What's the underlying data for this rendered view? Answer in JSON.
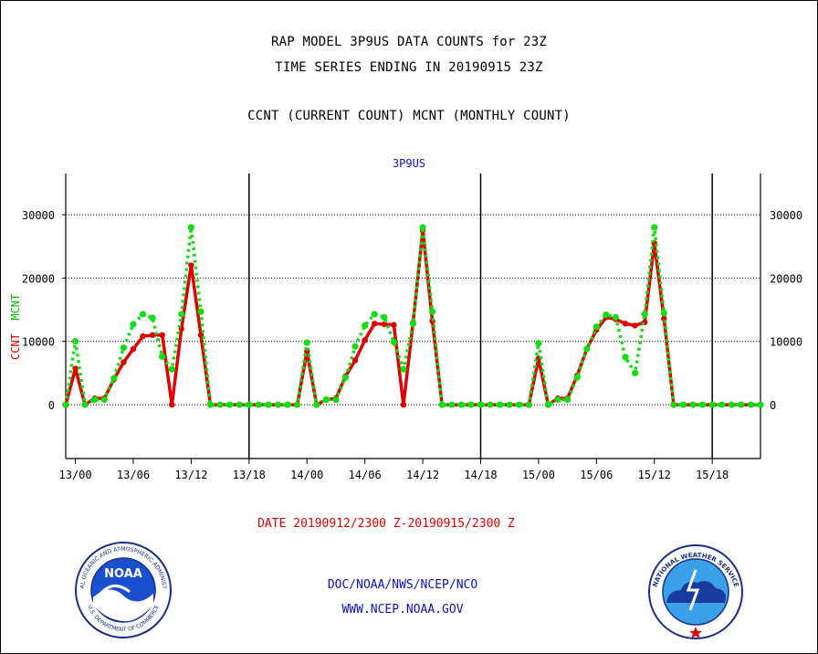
{
  "header": {
    "line1": "RAP MODEL 3P9US DATA COUNTS for 23Z",
    "line2": "TIME SERIES ENDING IN 20190915 23Z",
    "line3": "CCNT (CURRENT COUNT) MCNT (MONTHLY COUNT)"
  },
  "panel": {
    "name": "3P9US",
    "ylabel_ccnt": "CCNT",
    "ylabel_mcnt": "MCNT"
  },
  "footer": {
    "date_range": "DATE 20190912/2300 Z-20190915/2300 Z",
    "org": "DOC/NOAA/NWS/NCEP/NCO",
    "url": "WWW.NCEP.NOAA.GOV"
  },
  "logos": {
    "noaa_text": "NOAA",
    "noaa_ring": "NATIONAL OCEANIC AND ATMOSPHERIC ADMINISTRATION",
    "noaa_ring_bottom": "U.S. DEPARTMENT OF COMMERCE",
    "nws_ring": "NATIONAL WEATHER SERVICE"
  },
  "colors": {
    "ccnt": "#e00000",
    "mcnt": "#11dd11",
    "axis": "#000000",
    "title_blue": "#1010c0"
  },
  "chart_data": {
    "type": "line",
    "x_unit": "hour offset from 13/00 Z (2019-09-13 00Z)",
    "xlim": [
      -1,
      71
    ],
    "ylim": [
      -8500,
      36500
    ],
    "y_ticks": [
      0,
      10000,
      20000,
      30000
    ],
    "y_tick_labels": [
      "0",
      "10000",
      "20000",
      "30000"
    ],
    "x_ticks": [
      0,
      6,
      12,
      18,
      24,
      30,
      36,
      42,
      48,
      54,
      60,
      66
    ],
    "x_tick_labels": [
      "13/00",
      "13/06",
      "13/12",
      "13/18",
      "14/00",
      "14/06",
      "14/12",
      "14/18",
      "15/00",
      "15/06",
      "15/12",
      "15/18"
    ],
    "day_separators": [
      18,
      42,
      66
    ],
    "grid": true,
    "series": [
      {
        "name": "CCNT",
        "style": "solid",
        "x": [
          -1,
          0,
          1,
          2,
          3,
          4,
          5,
          6,
          7,
          8,
          9,
          10,
          11,
          12,
          13,
          14,
          15,
          16,
          17,
          18,
          19,
          20,
          21,
          22,
          23,
          24,
          25,
          26,
          27,
          28,
          29,
          30,
          31,
          32,
          33,
          34,
          35,
          36,
          37,
          38,
          39,
          40,
          41,
          42,
          43,
          44,
          45,
          46,
          47,
          48,
          49,
          50,
          51,
          52,
          53,
          54,
          55,
          56,
          57,
          58,
          59,
          60,
          61,
          62,
          63,
          64,
          65,
          66,
          67,
          68,
          69,
          70,
          71
        ],
        "values": [
          0,
          5700,
          0,
          1000,
          1000,
          4000,
          6700,
          8800,
          10800,
          11000,
          11000,
          0,
          12000,
          22000,
          11000,
          0,
          0,
          0,
          0,
          0,
          0,
          0,
          0,
          0,
          0,
          8400,
          0,
          800,
          1000,
          4500,
          7000,
          10200,
          12800,
          12700,
          12600,
          0,
          13000,
          27500,
          13200,
          0,
          0,
          0,
          0,
          0,
          0,
          0,
          0,
          0,
          0,
          7300,
          0,
          1000,
          1000,
          4600,
          8800,
          11800,
          13800,
          13500,
          12800,
          12500,
          13000,
          25500,
          13600,
          0,
          0,
          0,
          0,
          0,
          0,
          0,
          0,
          0,
          0
        ]
      },
      {
        "name": "MCNT",
        "style": "dotted",
        "x": [
          -1,
          0,
          1,
          2,
          3,
          4,
          5,
          6,
          7,
          8,
          9,
          10,
          11,
          12,
          13,
          14,
          15,
          16,
          17,
          18,
          19,
          20,
          21,
          22,
          23,
          24,
          25,
          26,
          27,
          28,
          29,
          30,
          31,
          32,
          33,
          34,
          35,
          36,
          37,
          38,
          39,
          40,
          41,
          42,
          43,
          44,
          45,
          46,
          47,
          48,
          49,
          50,
          51,
          52,
          53,
          54,
          55,
          56,
          57,
          58,
          59,
          60,
          61,
          62,
          63,
          64,
          65,
          66,
          67,
          68,
          69,
          70,
          71
        ],
        "values": [
          0,
          10000,
          0,
          800,
          800,
          4200,
          9000,
          12700,
          14300,
          13700,
          7600,
          5600,
          14300,
          28000,
          14700,
          0,
          0,
          0,
          0,
          0,
          0,
          0,
          0,
          0,
          0,
          9800,
          0,
          800,
          800,
          4300,
          9200,
          12500,
          14300,
          13800,
          9900,
          5600,
          12800,
          28000,
          14700,
          0,
          0,
          0,
          0,
          0,
          0,
          0,
          0,
          0,
          0,
          9700,
          0,
          800,
          800,
          4300,
          8800,
          12300,
          14200,
          13800,
          7500,
          5000,
          14300,
          28000,
          14500,
          0,
          0,
          0,
          0,
          0,
          0,
          0,
          0,
          0,
          0
        ]
      }
    ]
  }
}
